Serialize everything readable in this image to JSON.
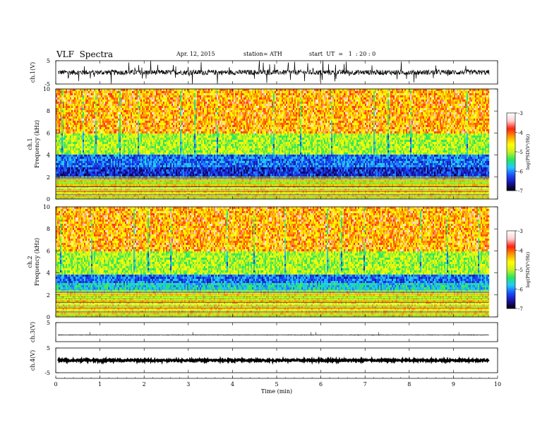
{
  "header": {
    "title": "VLF  Spectra",
    "date": "Apr. 12, 2015",
    "station": "station= ATH",
    "start": "start  UT  =   1  : 20 : 0"
  },
  "colorbar": {
    "label": "log(PSD(V²/Hz)",
    "ticks": [
      "-3",
      "-4",
      "-5",
      "-6",
      "-7"
    ],
    "range": [
      -7,
      -3
    ],
    "colors": [
      "#000000",
      "#1a10a0",
      "#1a4cff",
      "#22c8ff",
      "#22e860",
      "#c8f020",
      "#ffff00",
      "#ff9900",
      "#ff2010",
      "#ffd0d0",
      "#ffffff"
    ]
  },
  "chart_data": [
    {
      "type": "line",
      "panel": "ch.1",
      "ylabel": "ch.1(V)",
      "ylim": [
        -5,
        5
      ],
      "yticks": [
        "5",
        "-5"
      ],
      "xlim": [
        0,
        10
      ],
      "baseline": 0,
      "noise_amplitude": 1.1
    },
    {
      "type": "heatmap",
      "panel": "ch.1",
      "ylabel": "Frequency  (kHz)",
      "channel_label": "ch.1",
      "ylim": [
        0,
        10
      ],
      "yticks": [
        "0",
        "2",
        "4",
        "6",
        "8",
        "10"
      ],
      "xlim": [
        0,
        9.8
      ],
      "bands": [
        {
          "f_low": 0,
          "f_high": 2.1,
          "level": -4.6,
          "note": "horizontal lines"
        },
        {
          "f_low": 2.1,
          "f_high": 3.0,
          "level": -6.4
        },
        {
          "f_low": 3.0,
          "f_high": 4.2,
          "level": -6.1
        },
        {
          "f_low": 4.2,
          "f_high": 6.0,
          "level": -5.0
        },
        {
          "f_low": 6.0,
          "f_high": 10.0,
          "level": -4.3
        }
      ]
    },
    {
      "type": "heatmap",
      "panel": "ch.2",
      "ylabel": "Frequency  (kHz)",
      "channel_label": "ch.2",
      "ylim": [
        0,
        10
      ],
      "yticks": [
        "0",
        "2",
        "4",
        "6",
        "8",
        "10"
      ],
      "xlim": [
        0,
        9.8
      ],
      "bands": [
        {
          "f_low": 0,
          "f_high": 2.5,
          "level": -4.6,
          "note": "horizontal lines"
        },
        {
          "f_low": 2.5,
          "f_high": 3.1,
          "level": -5.7
        },
        {
          "f_low": 3.1,
          "f_high": 4.0,
          "level": -6.1
        },
        {
          "f_low": 4.0,
          "f_high": 6.0,
          "level": -5.0
        },
        {
          "f_low": 6.0,
          "f_high": 10.0,
          "level": -4.3
        }
      ]
    },
    {
      "type": "line",
      "panel": "ch.3",
      "ylabel": "ch.3(V)",
      "ylim": [
        -5,
        5
      ],
      "yticks": [
        "5"
      ],
      "xlim": [
        0,
        9.8
      ],
      "baseline": -1.5,
      "noise_amplitude": 0.15
    },
    {
      "type": "line",
      "panel": "ch.4",
      "ylabel": "ch.4(V)",
      "ylim": [
        -5,
        5
      ],
      "yticks": [
        "5",
        "-5"
      ],
      "xlim": [
        0,
        9.8
      ],
      "baseline": 0,
      "noise_amplitude": 0.35
    }
  ],
  "xaxis": {
    "label": "Time  (min)",
    "ticks": [
      "0",
      "1",
      "2",
      "3",
      "4",
      "5",
      "6",
      "7",
      "8",
      "9",
      "10"
    ],
    "range": [
      0,
      10
    ]
  }
}
